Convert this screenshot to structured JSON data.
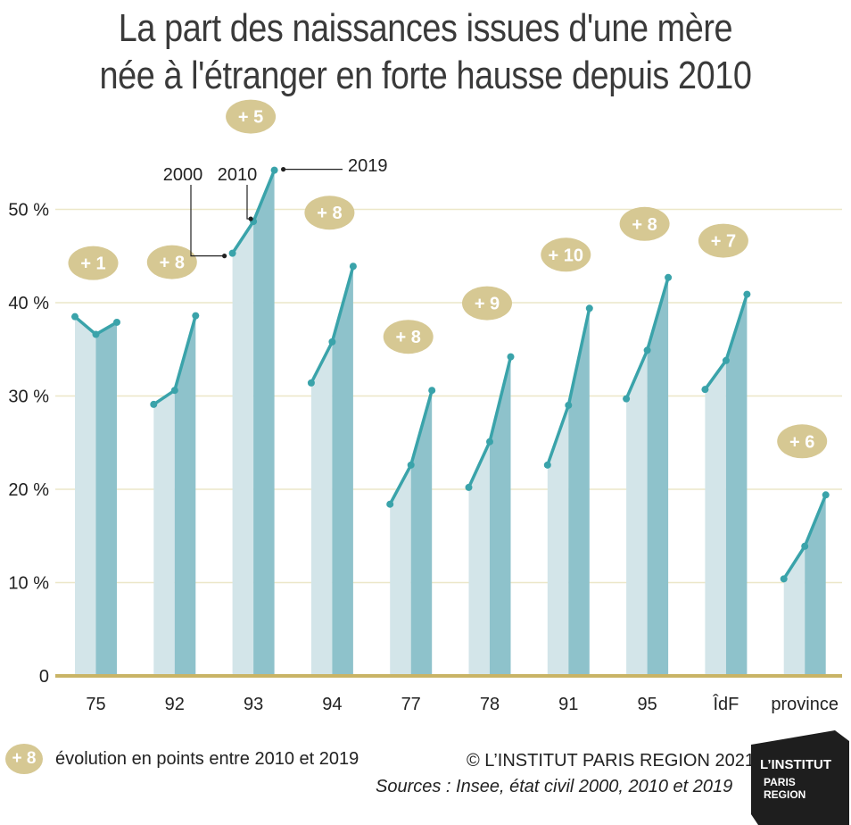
{
  "title_line1": "La part des naissances issues d'une mère",
  "title_line2": "née à l'étranger en forte hausse depuis 2010",
  "colors": {
    "bar_light": "#d3e5e9",
    "bar_dark": "#8ec2cb",
    "line": "#3aa3aa",
    "badge": "#d6c893",
    "baseline": "#c9b466",
    "grid": "#ece7c8"
  },
  "year_labels": [
    "2000",
    "2010",
    "2019"
  ],
  "legend": {
    "badge": "+ 8",
    "text": "évolution en points entre 2010 et 2019"
  },
  "credit": "© L’INSTITUT PARIS REGION 2021",
  "sources": "Sources : Insee, état civil 2000, 2010 et 2019",
  "logo": {
    "line1": "L’INSTITUT",
    "line2": "PARIS",
    "line3": "REGION"
  },
  "chart_data": {
    "type": "line",
    "ylim": [
      0,
      55
    ],
    "yticks": [
      0,
      10,
      20,
      30,
      40,
      50
    ],
    "ytick_labels": [
      "0",
      "10 %",
      "20 %",
      "30 %",
      "40 %",
      "50 %"
    ],
    "categories": [
      "75",
      "92",
      "93",
      "94",
      "77",
      "78",
      "91",
      "95",
      "ÎdF",
      "province"
    ],
    "years": [
      "2000",
      "2010",
      "2019"
    ],
    "values": [
      [
        38.5,
        36.6,
        37.9
      ],
      [
        29.1,
        30.6,
        38.6
      ],
      [
        45.3,
        48.7,
        54.2
      ],
      [
        31.4,
        35.8,
        43.9
      ],
      [
        18.4,
        22.6,
        30.6
      ],
      [
        20.2,
        25.1,
        34.2
      ],
      [
        22.6,
        29.0,
        39.4
      ],
      [
        29.7,
        34.9,
        42.7
      ],
      [
        30.7,
        33.8,
        40.9
      ],
      [
        10.4,
        13.9,
        19.4
      ]
    ],
    "evolution_labels": [
      "+ 1",
      "+ 8",
      "+ 5",
      "+ 8",
      "+ 8",
      "+ 9",
      "+ 10",
      "+ 8",
      "+ 7",
      "+ 6"
    ],
    "grid": true
  }
}
